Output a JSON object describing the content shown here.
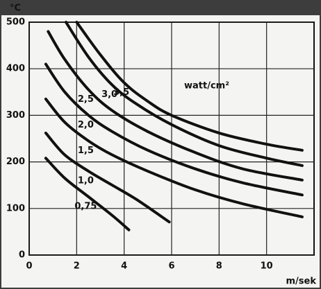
{
  "chart_data": {
    "type": "line",
    "y_label": "°C",
    "x_label": "m/sek",
    "unit_label": "watt/cm²",
    "xlim": [
      0,
      12
    ],
    "xticks": [
      0,
      2,
      4,
      6,
      8,
      10
    ],
    "ylim": [
      0,
      500
    ],
    "yticks": [
      0,
      100,
      200,
      300,
      400,
      500
    ],
    "grid": true,
    "color": "#111111",
    "series": [
      {
        "name": "0,75",
        "x": [
          0.7,
          1.5,
          2.5,
          3.5,
          4.2
        ],
        "values": [
          208,
          165,
          125,
          85,
          54
        ]
      },
      {
        "name": "1,0",
        "x": [
          0.7,
          1.5,
          2.5,
          3.5,
          4.5,
          5.9
        ],
        "values": [
          262,
          215,
          180,
          150,
          120,
          71
        ]
      },
      {
        "name": "1,5",
        "x": [
          0.7,
          1.5,
          2.5,
          3.5,
          5,
          7,
          9,
          11.5
        ],
        "values": [
          335,
          285,
          245,
          215,
          180,
          140,
          110,
          82
        ]
      },
      {
        "name": "2,0",
        "x": [
          0.7,
          1.5,
          2.5,
          3.5,
          5,
          7,
          9,
          11.5
        ],
        "values": [
          410,
          350,
          300,
          265,
          225,
          185,
          155,
          129
        ]
      },
      {
        "name": "2,5",
        "x": [
          0.8,
          1.5,
          2.5,
          3.5,
          5,
          7,
          9,
          11.5
        ],
        "values": [
          480,
          420,
          355,
          310,
          265,
          220,
          185,
          161
        ]
      },
      {
        "name": "3,0",
        "x": [
          1.55,
          2.5,
          3.5,
          4.5,
          6,
          8,
          10,
          11.5
        ],
        "values": [
          500,
          425,
          365,
          325,
          280,
          235,
          208,
          192
        ]
      },
      {
        "name": "3,5",
        "x": [
          2,
          3,
          4,
          5,
          6,
          8,
          10,
          11.5
        ],
        "values": [
          500,
          430,
          370,
          330,
          300,
          262,
          238,
          225
        ]
      }
    ]
  }
}
